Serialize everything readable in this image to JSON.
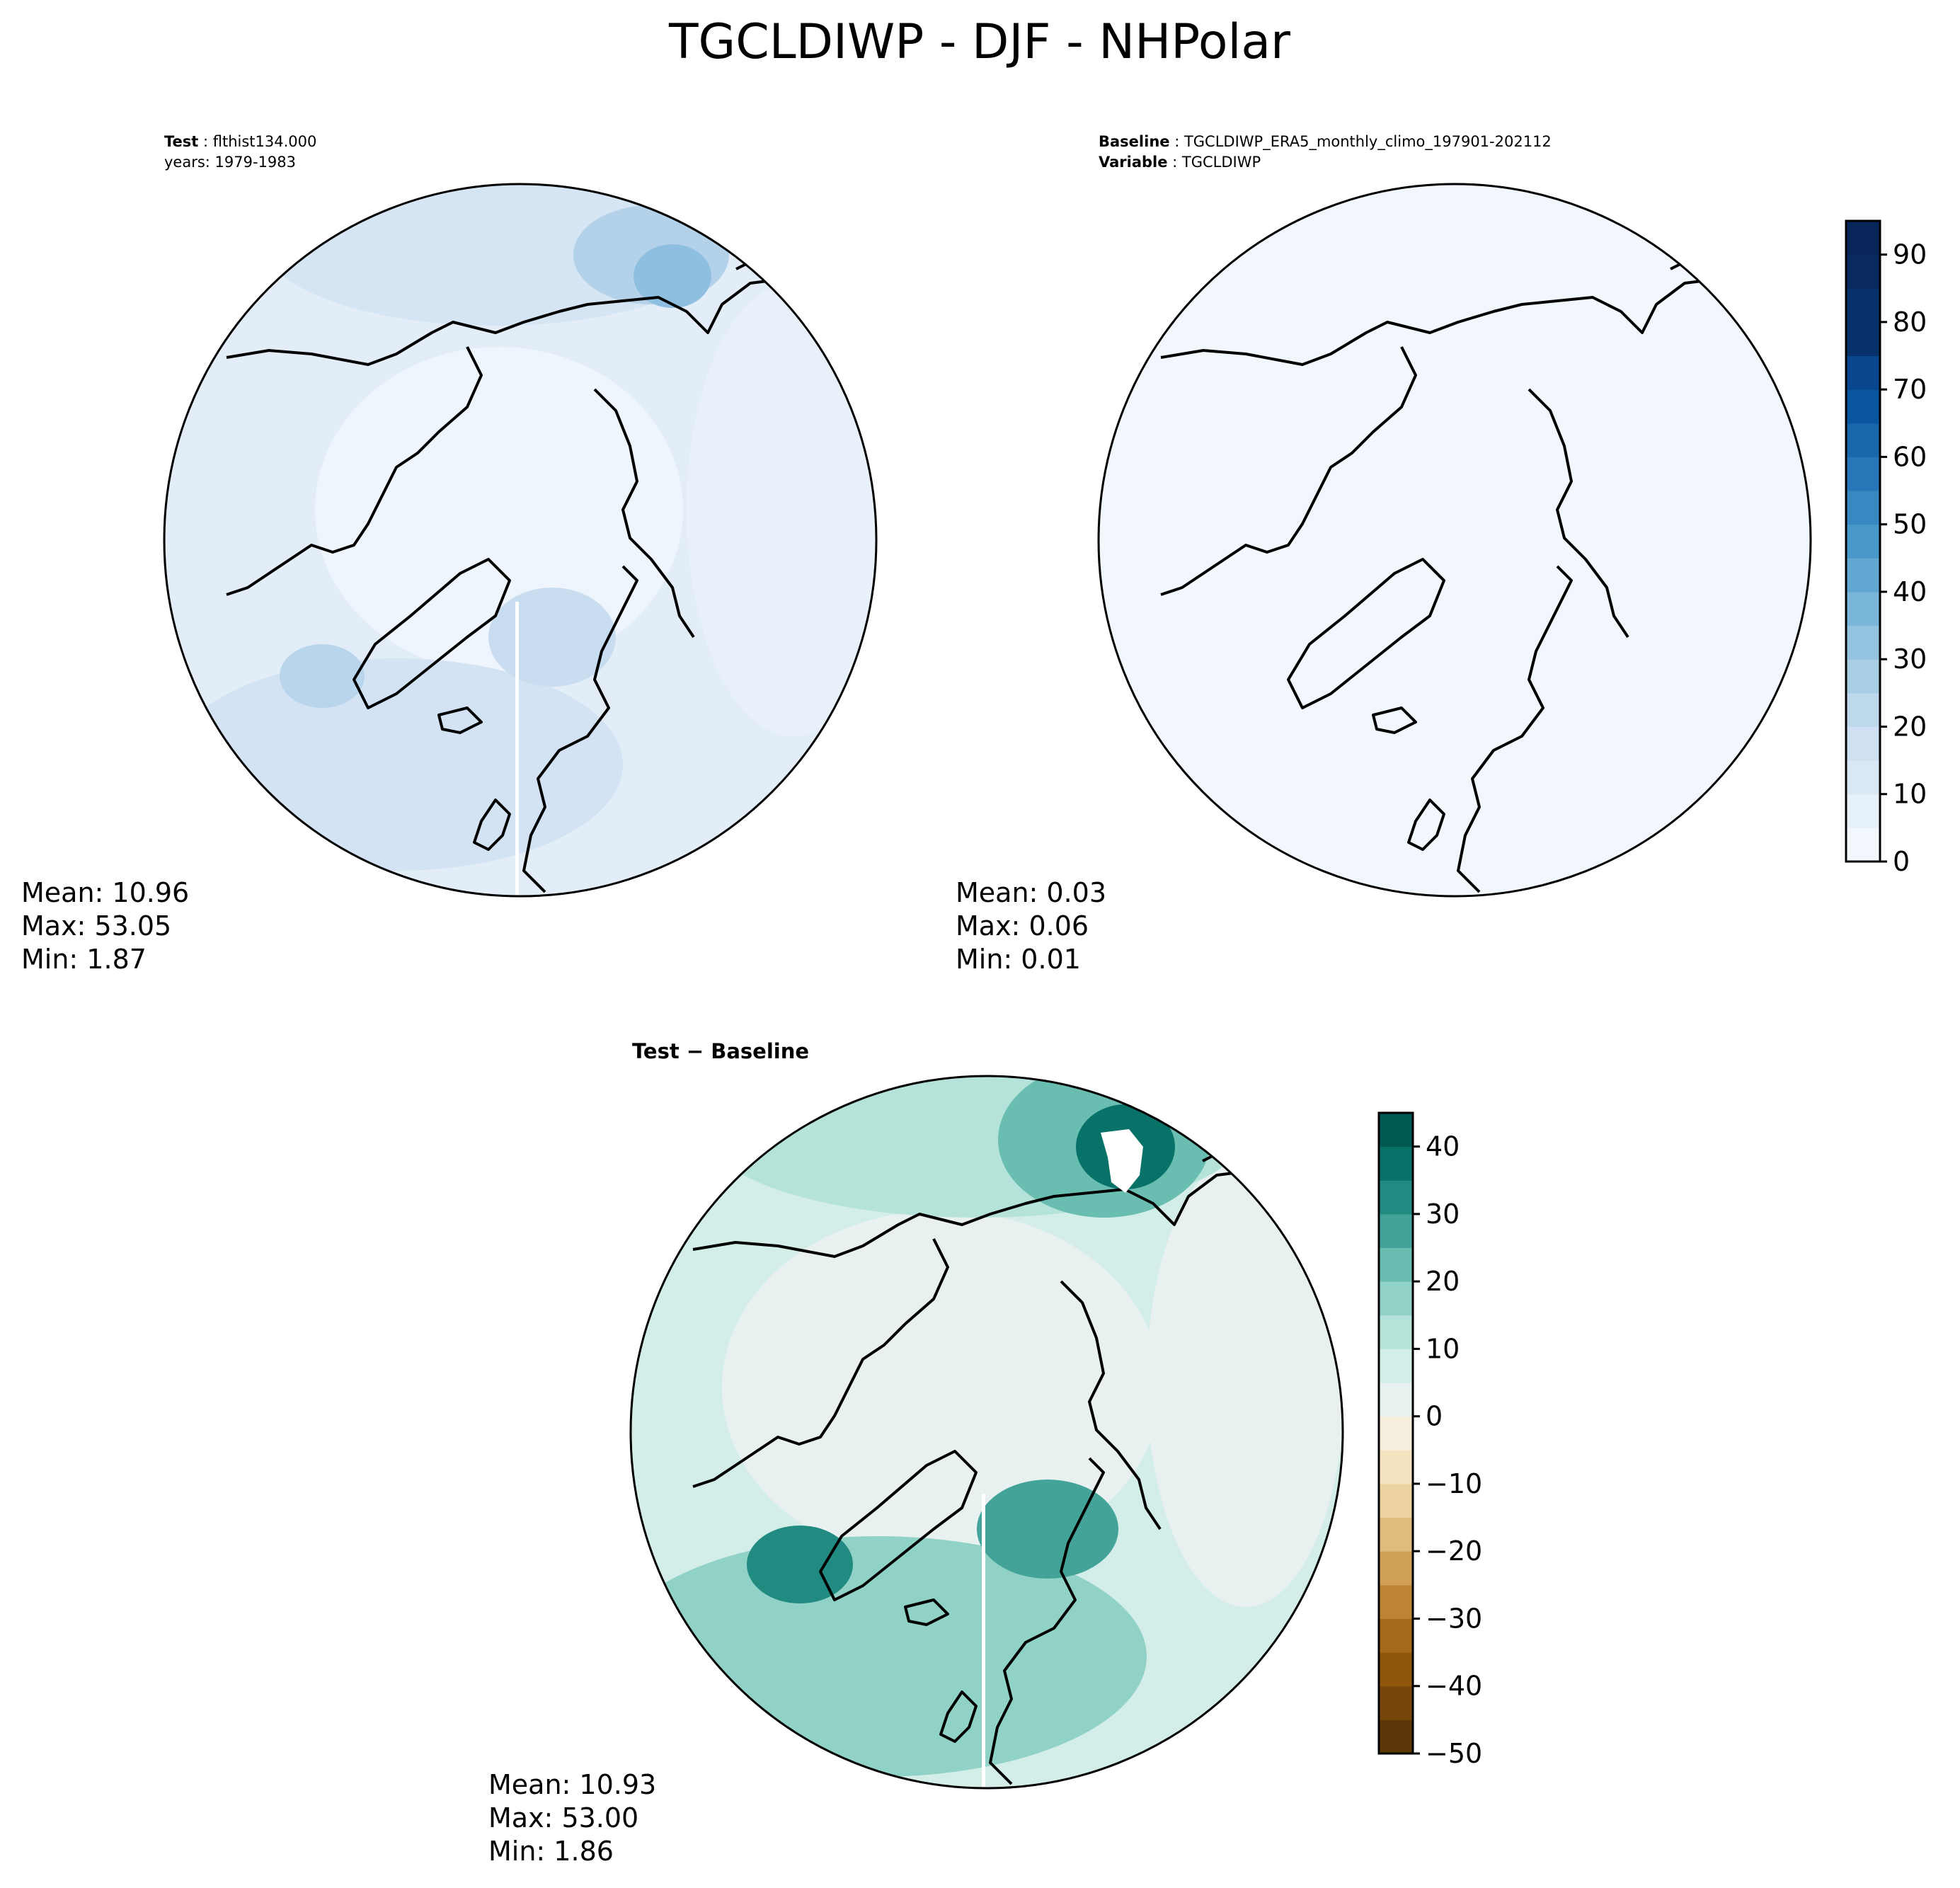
{
  "title": "TGCLDIWP - DJF - NHPolar",
  "panels": [
    {
      "id": "test",
      "header": [
        {
          "bold": "Test",
          "text": "flthist134.000"
        },
        {
          "bold": "",
          "text": "years: 1979-1983"
        }
      ],
      "stats": [
        "Mean: 10.96",
        "Max: 53.05",
        "Min:  1.87"
      ],
      "colormap": "Blues"
    },
    {
      "id": "baseline",
      "header": [
        {
          "bold": "Baseline",
          "text": "TGCLDIWP_ERA5_monthly_climo_197901-202112"
        },
        {
          "bold": "Variable",
          "text": "TGCLDIWP"
        }
      ],
      "stats": [
        "Mean:  0.03",
        "Max:  0.06",
        "Min:  0.01"
      ],
      "colormap": "Blues"
    },
    {
      "id": "diff",
      "header": [
        {
          "bold": "Test − Baseline",
          "text": ""
        }
      ],
      "stats": [
        "Mean: 10.93",
        "Max: 53.00",
        "Min:  1.86"
      ],
      "colormap": "BrBG"
    }
  ],
  "colorbars": [
    {
      "id": "abs",
      "min": 0,
      "max": 95,
      "step": 5,
      "ticks": [
        0,
        10,
        20,
        30,
        40,
        50,
        60,
        70,
        80,
        90
      ],
      "tick_labels": [
        "0",
        "10",
        "20",
        "30",
        "40",
        "50",
        "60",
        "70",
        "80",
        "90"
      ],
      "colors": [
        "#f2f7fd",
        "#e6f0f9",
        "#dae8f6",
        "#cee0f2",
        "#bed8ec",
        "#a9cfe5",
        "#94c4df",
        "#7ab6d9",
        "#61a7d2",
        "#4a98c9",
        "#3888c1",
        "#2777b8",
        "#1966ad",
        "#0b559f",
        "#08478d",
        "#08306b",
        "#08306b",
        "#082a5e",
        "#08255a"
      ]
    },
    {
      "id": "diff",
      "min": -50,
      "max": 45,
      "step": 5,
      "ticks": [
        -50,
        -40,
        -30,
        -20,
        -10,
        0,
        10,
        20,
        30,
        40
      ],
      "tick_labels": [
        "−50",
        "−40",
        "−30",
        "−20",
        "−10",
        "0",
        "10",
        "20",
        "30",
        "40"
      ],
      "colors": [
        "#5e3708",
        "#774709",
        "#8f570c",
        "#a76a1d",
        "#bd8533",
        "#cfa055",
        "#e0bc7c",
        "#ebd29f",
        "#f3e3bf",
        "#f6eedc",
        "#e9f1f0",
        "#d3ede9",
        "#b5e3da",
        "#90d2c6",
        "#6abdb1",
        "#43a399",
        "#218a81",
        "#087168",
        "#015a52"
      ]
    }
  ]
}
